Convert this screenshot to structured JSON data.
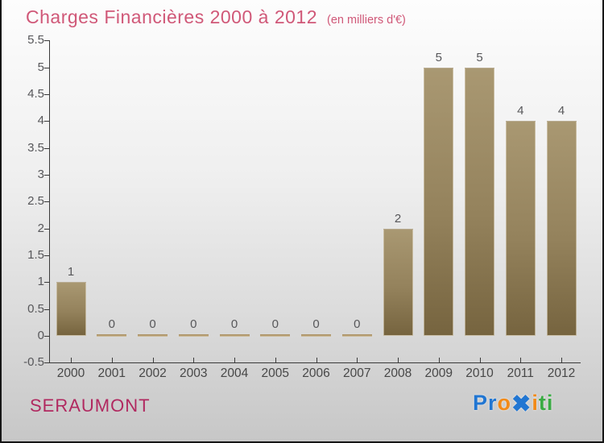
{
  "header": {
    "title": "Charges Financières 2000 à 2012",
    "subtitle": "(en milliers d'€)"
  },
  "chart_data": {
    "type": "bar",
    "title": "Charges Financières 2000 à 2012",
    "subtitle": "(en milliers d'€)",
    "categories": [
      "2000",
      "2001",
      "2002",
      "2003",
      "2004",
      "2005",
      "2006",
      "2007",
      "2008",
      "2009",
      "2010",
      "2011",
      "2012"
    ],
    "values": [
      1,
      0,
      0,
      0,
      0,
      0,
      0,
      0,
      2,
      5,
      5,
      4,
      4
    ],
    "xlabel": "",
    "ylabel": "",
    "ylim": [
      -0.5,
      5.5
    ],
    "ytick_step": 0.5,
    "grid": false,
    "legend": null,
    "bar_color_top": "#a99872",
    "bar_color_bottom": "#76643f",
    "value_label_color": "#57575a",
    "axis_color": "#3a3a3a"
  },
  "footer": {
    "location": "SERAUMONT",
    "logo": {
      "name": "Proxiti",
      "letters": [
        {
          "char": "P",
          "color": "#2176d2"
        },
        {
          "char": "r",
          "color": "#2176d2"
        },
        {
          "char": "o",
          "color": "#f28a18"
        },
        {
          "char": "✖",
          "color": "#2176d2"
        },
        {
          "char": "i",
          "color": "#f28a18"
        },
        {
          "char": "t",
          "color": "#3aab44"
        },
        {
          "char": "i",
          "color": "#3aab44"
        }
      ]
    }
  },
  "colors": {
    "title": "#d05878",
    "location": "#b12960",
    "background_top": "#fdfdfd",
    "background_bottom": "#c7c7c7"
  }
}
